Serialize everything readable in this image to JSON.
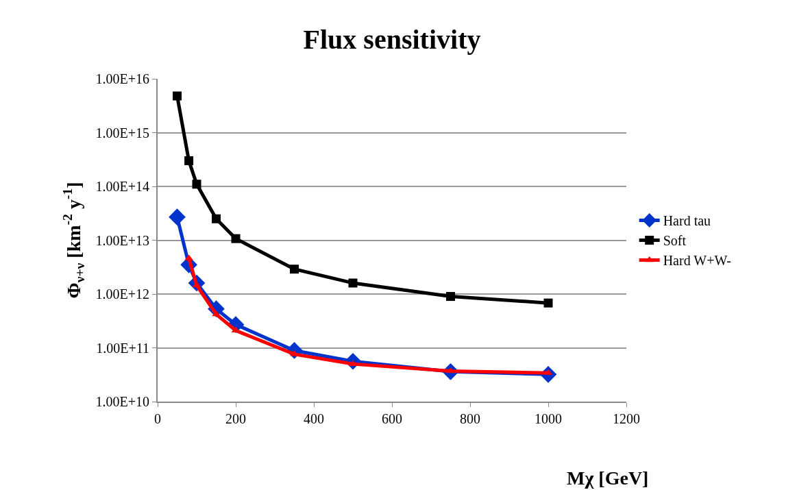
{
  "chart_data": {
    "type": "line",
    "title": "Flux sensitivity",
    "xlabel": "Mχ [GeV]",
    "ylabel": "Φ$_{ν+ν}$ [km$^{-2}$ y$^{-1}$]",
    "log": "y",
    "grid": "y",
    "legend": "right",
    "line_style": "solid",
    "xlim": [
      0,
      1200
    ],
    "xticks": [
      0,
      200,
      400,
      600,
      800,
      1000,
      1200
    ],
    "ylim": [
      10000000000.0,
      1e+16
    ],
    "yticks": [
      {
        "value": 10000000000.0,
        "label": "1.00E+10"
      },
      {
        "value": 100000000000.0,
        "label": "1.00E+11"
      },
      {
        "value": 1000000000000.0,
        "label": "1.00E+12"
      },
      {
        "value": 10000000000000.0,
        "label": "1.00E+13"
      },
      {
        "value": 100000000000000.0,
        "label": "1.00E+14"
      },
      {
        "value": 1000000000000000.0,
        "label": "1.00E+15"
      },
      {
        "value": 1e+16,
        "label": "1.00E+16"
      }
    ],
    "series": [
      {
        "name": "Hard tau",
        "color": "#0033cc",
        "marker": "diamond",
        "x": [
          50,
          80,
          100,
          150,
          200,
          350,
          500,
          750,
          1000
        ],
        "values": [
          27000000000000.0,
          3500000000000.0,
          1600000000000.0,
          530000000000.0,
          270000000000.0,
          89000000000.0,
          56000000000.0,
          36000000000.0,
          32000000000.0
        ]
      },
      {
        "name": "Soft",
        "color": "#000000",
        "marker": "square",
        "x": [
          50,
          80,
          100,
          150,
          200,
          350,
          500,
          750,
          1000
        ],
        "values": [
          4800000000000000.0,
          300000000000000.0,
          110000000000000.0,
          25000000000000.0,
          10700000000000.0,
          2900000000000.0,
          1600000000000.0,
          900000000000.0,
          680000000000.0
        ]
      },
      {
        "name": "Hard W+W-",
        "color": "#ff0000",
        "marker": "triangle",
        "x": [
          80,
          100,
          150,
          200,
          350,
          500,
          750,
          1000
        ],
        "values": [
          4600000000000.0,
          1450000000000.0,
          420000000000.0,
          210000000000.0,
          76000000000.0,
          50000000000.0,
          37000000000.0,
          34000000000.0
        ]
      }
    ]
  }
}
